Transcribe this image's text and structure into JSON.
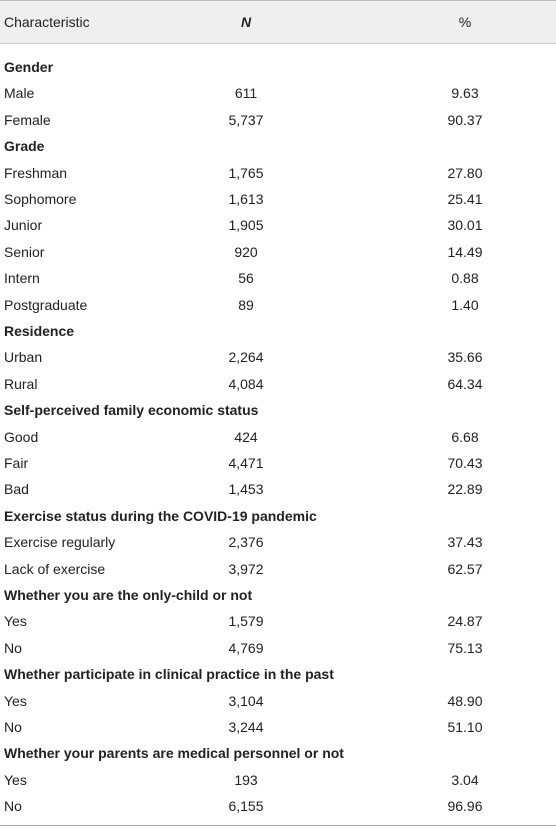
{
  "table": {
    "header": [
      "Characteristic",
      "N",
      "%"
    ],
    "sections": [
      {
        "title": "Gender",
        "rows": [
          [
            "Male",
            "611",
            "9.63"
          ],
          [
            "Female",
            "5,737",
            "90.37"
          ]
        ]
      },
      {
        "title": "Grade",
        "rows": [
          [
            "Freshman",
            "1,765",
            "27.80"
          ],
          [
            "Sophomore",
            "1,613",
            "25.41"
          ],
          [
            "Junior",
            "1,905",
            "30.01"
          ],
          [
            "Senior",
            "920",
            "14.49"
          ],
          [
            "Intern",
            "56",
            "0.88"
          ],
          [
            "Postgraduate",
            "89",
            "1.40"
          ]
        ]
      },
      {
        "title": "Residence",
        "rows": [
          [
            "Urban",
            "2,264",
            "35.66"
          ],
          [
            "Rural",
            "4,084",
            "64.34"
          ]
        ]
      },
      {
        "title": "Self-perceived family economic status",
        "rows": [
          [
            "Good",
            "424",
            "6.68"
          ],
          [
            "Fair",
            "4,471",
            "70.43"
          ],
          [
            "Bad",
            "1,453",
            "22.89"
          ]
        ]
      },
      {
        "title": "Exercise status during the COVID-19 pandemic",
        "rows": [
          [
            "Exercise regularly",
            "2,376",
            "37.43"
          ],
          [
            "Lack of exercise",
            "3,972",
            "62.57"
          ]
        ]
      },
      {
        "title": "Whether you are the only-child or not",
        "rows": [
          [
            "Yes",
            "1,579",
            "24.87"
          ],
          [
            "No",
            "4,769",
            "75.13"
          ]
        ]
      },
      {
        "title": "Whether participate in clinical practice in the past",
        "rows": [
          [
            "Yes",
            "3,104",
            "48.90"
          ],
          [
            "No",
            "3,244",
            "51.10"
          ]
        ]
      },
      {
        "title": "Whether your parents are medical personnel or not",
        "rows": [
          [
            "Yes",
            "193",
            "3.04"
          ],
          [
            "No",
            "6,155",
            "96.96"
          ]
        ]
      }
    ]
  }
}
